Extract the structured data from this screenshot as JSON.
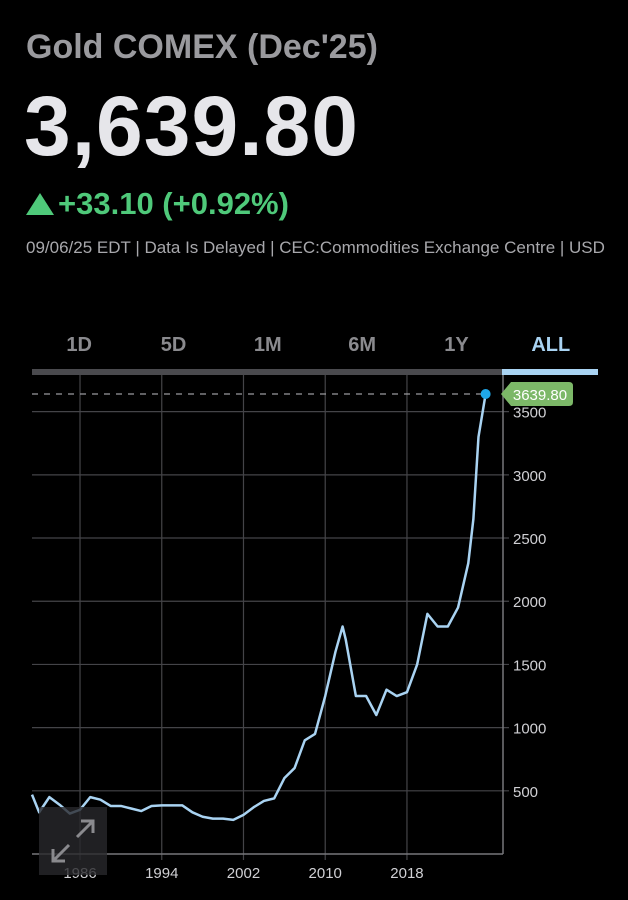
{
  "header": {
    "title": "Gold COMEX (Dec'25)",
    "price": "3,639.80",
    "change": "+33.10 (+0.92%)",
    "change_direction": "up",
    "meta": "09/06/25 EDT | Data Is Delayed | CEC:Commodities Exchange Centre | USD"
  },
  "tabs": [
    {
      "label": "1D"
    },
    {
      "label": "5D"
    },
    {
      "label": "1M"
    },
    {
      "label": "6M"
    },
    {
      "label": "1Y"
    },
    {
      "label": "ALL",
      "active": true
    }
  ],
  "colors": {
    "line": "#a9d3f2",
    "up": "#4fc97a",
    "marker": "#1fa7e8",
    "active_tab": "#a9d3f2"
  },
  "chart_data": {
    "type": "line",
    "last_value_label": "3639.80",
    "xlim": [
      1981.3,
      2027.4
    ],
    "ylim": [
      0,
      3790
    ],
    "x_ticks": [
      "1986",
      "1994",
      "2002",
      "2010",
      "2018"
    ],
    "y_ticks": [
      "500",
      "1000",
      "1500",
      "2000",
      "2500",
      "3000",
      "3500"
    ],
    "grid": true,
    "series": [
      {
        "x": [
          1981.3,
          1982,
          1983,
          1984,
          1985,
          1986,
          1987,
          1988,
          1989,
          1990,
          1991,
          1992,
          1993,
          1994,
          1995,
          1996,
          1997,
          1998,
          1999,
          2000,
          2001,
          2002,
          2003,
          2004,
          2005,
          2006,
          2007,
          2008,
          2009,
          2010,
          2011,
          2011.7,
          2012,
          2013,
          2014,
          2015,
          2016,
          2017,
          2018,
          2019,
          2020,
          2021,
          2022,
          2023,
          2024,
          2024.5,
          2025,
          2025.7
        ],
        "y": [
          470,
          330,
          450,
          390,
          320,
          350,
          450,
          430,
          380,
          380,
          360,
          340,
          380,
          385,
          385,
          385,
          330,
          295,
          280,
          280,
          270,
          310,
          370,
          420,
          440,
          600,
          680,
          900,
          950,
          1250,
          1600,
          1800,
          1700,
          1250,
          1250,
          1100,
          1300,
          1250,
          1280,
          1500,
          1900,
          1800,
          1800,
          1950,
          2300,
          2650,
          3300,
          3639.8
        ]
      }
    ]
  }
}
